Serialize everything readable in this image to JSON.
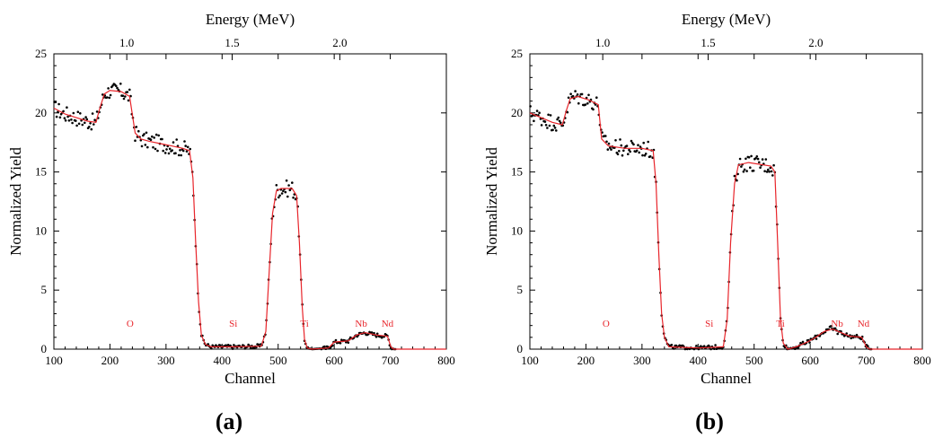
{
  "chart_data": [
    {
      "type": "scatter",
      "panel_label": "(a)",
      "xlabel": "Channel",
      "ylabel": "Normalized Yield",
      "top_xlabel": "Energy (MeV)",
      "xlim": [
        100,
        800
      ],
      "ylim": [
        0,
        25
      ],
      "xticks": [
        100,
        200,
        300,
        400,
        500,
        600,
        700,
        800
      ],
      "yticks": [
        0,
        5,
        10,
        15,
        20,
        25
      ],
      "top_ticks": [
        {
          "channel": 230,
          "label": "1.0"
        },
        {
          "channel": 418,
          "label": "1.5"
        },
        {
          "channel": 610,
          "label": "2.0"
        }
      ],
      "element_labels": [
        {
          "text": "O",
          "x": 236,
          "y": 1.9
        },
        {
          "text": "Si",
          "x": 420,
          "y": 1.9
        },
        {
          "text": "Ti",
          "x": 547,
          "y": 1.9
        },
        {
          "text": "Nb",
          "x": 648,
          "y": 1.9
        },
        {
          "text": "Nd",
          "x": 695,
          "y": 1.9
        }
      ],
      "fit_curve": [
        [
          100,
          20.4
        ],
        [
          120,
          19.9
        ],
        [
          140,
          19.6
        ],
        [
          160,
          19.3
        ],
        [
          175,
          19.2
        ],
        [
          182,
          20.4
        ],
        [
          190,
          21.6
        ],
        [
          200,
          21.9
        ],
        [
          220,
          21.8
        ],
        [
          235,
          21.4
        ],
        [
          245,
          18.3
        ],
        [
          255,
          17.8
        ],
        [
          270,
          17.6
        ],
        [
          290,
          17.4
        ],
        [
          310,
          17.2
        ],
        [
          330,
          17.0
        ],
        [
          342,
          16.8
        ],
        [
          348,
          14.5
        ],
        [
          353,
          9.0
        ],
        [
          358,
          4.0
        ],
        [
          363,
          1.2
        ],
        [
          370,
          0.4
        ],
        [
          380,
          0.2
        ],
        [
          420,
          0.2
        ],
        [
          470,
          0.25
        ],
        [
          478,
          1.5
        ],
        [
          484,
          6.5
        ],
        [
          490,
          11.5
        ],
        [
          497,
          13.4
        ],
        [
          505,
          13.6
        ],
        [
          525,
          13.6
        ],
        [
          533,
          13.0
        ],
        [
          538,
          9.0
        ],
        [
          543,
          3.5
        ],
        [
          547,
          0.8
        ],
        [
          552,
          0.1
        ],
        [
          560,
          0.0
        ],
        [
          590,
          0.1
        ],
        [
          600,
          0.6
        ],
        [
          625,
          0.7
        ],
        [
          640,
          1.2
        ],
        [
          655,
          1.4
        ],
        [
          675,
          1.2
        ],
        [
          695,
          1.1
        ],
        [
          701,
          0.2
        ],
        [
          706,
          0.0
        ],
        [
          800,
          0.0
        ]
      ]
    },
    {
      "type": "scatter",
      "panel_label": "(b)",
      "xlabel": "Channel",
      "ylabel": "Normalized Yield",
      "top_xlabel": "Energy (MeV)",
      "xlim": [
        100,
        800
      ],
      "ylim": [
        0,
        25
      ],
      "xticks": [
        100,
        200,
        300,
        400,
        500,
        600,
        700,
        800
      ],
      "yticks": [
        0,
        5,
        10,
        15,
        20,
        25
      ],
      "top_ticks": [
        {
          "channel": 230,
          "label": "1.0"
        },
        {
          "channel": 418,
          "label": "1.5"
        },
        {
          "channel": 610,
          "label": "2.0"
        }
      ],
      "element_labels": [
        {
          "text": "O",
          "x": 236,
          "y": 1.9
        },
        {
          "text": "Si",
          "x": 420,
          "y": 1.9
        },
        {
          "text": "Ti",
          "x": 547,
          "y": 1.9
        },
        {
          "text": "Nb",
          "x": 648,
          "y": 1.9
        },
        {
          "text": "Nd",
          "x": 695,
          "y": 1.9
        }
      ],
      "fit_curve": [
        [
          100,
          20.0
        ],
        [
          120,
          19.6
        ],
        [
          140,
          19.2
        ],
        [
          158,
          19.0
        ],
        [
          165,
          20.2
        ],
        [
          172,
          21.2
        ],
        [
          185,
          21.4
        ],
        [
          205,
          21.1
        ],
        [
          222,
          20.7
        ],
        [
          228,
          17.8
        ],
        [
          240,
          17.2
        ],
        [
          270,
          17.0
        ],
        [
          300,
          17.0
        ],
        [
          320,
          16.8
        ],
        [
          325,
          14.0
        ],
        [
          330,
          8.0
        ],
        [
          335,
          3.0
        ],
        [
          340,
          1.0
        ],
        [
          348,
          0.2
        ],
        [
          400,
          0.1
        ],
        [
          445,
          0.2
        ],
        [
          452,
          2.5
        ],
        [
          458,
          9.0
        ],
        [
          465,
          14.0
        ],
        [
          472,
          15.6
        ],
        [
          490,
          15.8
        ],
        [
          530,
          15.5
        ],
        [
          537,
          15.0
        ],
        [
          542,
          9.0
        ],
        [
          547,
          2.5
        ],
        [
          552,
          0.5
        ],
        [
          560,
          0.0
        ],
        [
          575,
          0.2
        ],
        [
          595,
          0.6
        ],
        [
          610,
          1.0
        ],
        [
          625,
          1.5
        ],
        [
          640,
          1.7
        ],
        [
          655,
          1.4
        ],
        [
          670,
          1.1
        ],
        [
          692,
          1.0
        ],
        [
          700,
          0.2
        ],
        [
          706,
          0.0
        ],
        [
          800,
          0.0
        ]
      ]
    }
  ]
}
